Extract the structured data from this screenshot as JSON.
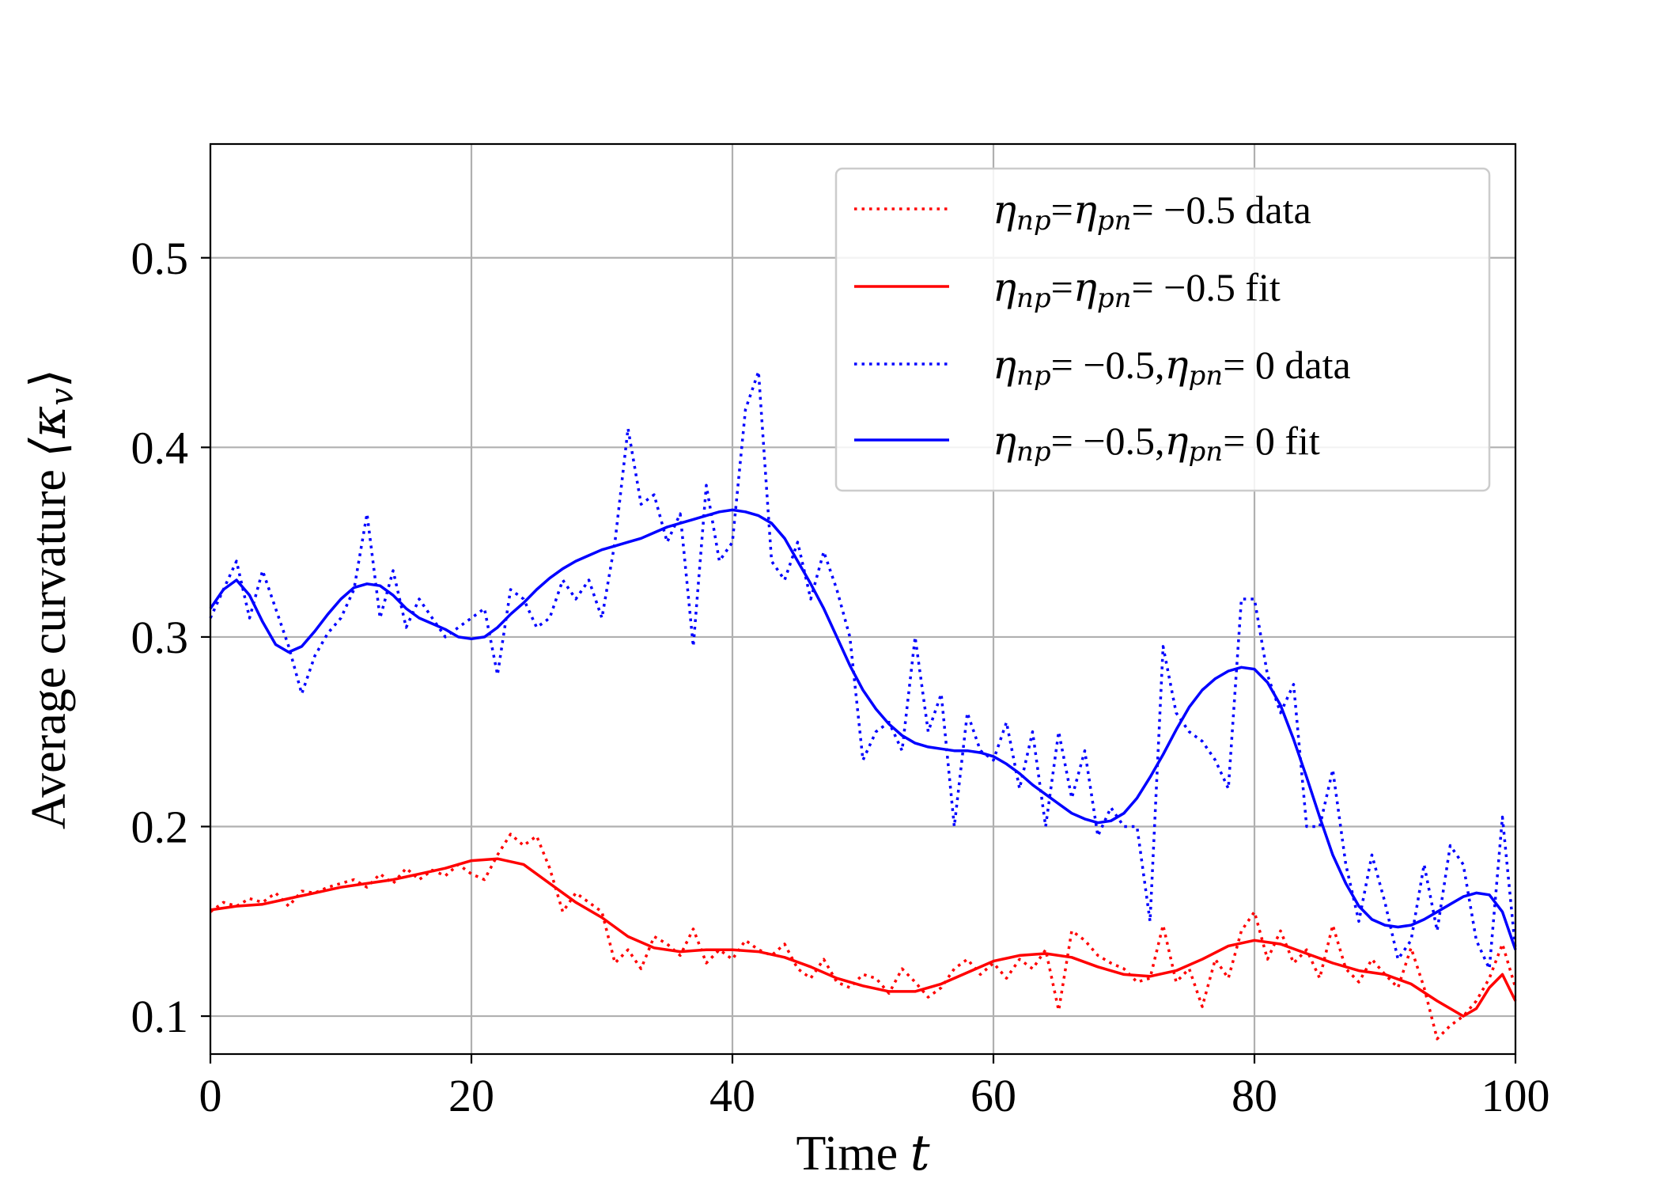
{
  "chart_data": {
    "type": "line",
    "title": "",
    "xlabel": "Time t",
    "xlabel_parts": {
      "text": "Time ",
      "var": "t"
    },
    "ylabel": "Average curvature ⟨κv⟩",
    "ylabel_parts": {
      "text": "Average curvature ",
      "math": "⟨κ",
      "sub": "v",
      "close": "⟩"
    },
    "xlim": [
      0,
      100
    ],
    "ylim": [
      0.08,
      0.56
    ],
    "xticks": [
      0,
      20,
      40,
      60,
      80,
      100
    ],
    "xtick_labels": [
      "0",
      "20",
      "40",
      "60",
      "80",
      "100"
    ],
    "yticks": [
      0.1,
      0.2,
      0.3,
      0.4,
      0.5
    ],
    "ytick_labels": [
      "0.1",
      "0.2",
      "0.3",
      "0.4",
      "0.5"
    ],
    "grid": true,
    "legend_position": "top-right",
    "legend": [
      {
        "label": "ηnp = ηpn = −0.5 data",
        "math": "η",
        "sub1": "np",
        "mid": "=",
        "math2": "η",
        "sub2": "pn",
        "rest": "= −0.5",
        "suffix": " data"
      },
      {
        "label": "ηnp = ηpn = −0.5 fit",
        "math": "η",
        "sub1": "np",
        "mid": "=",
        "math2": "η",
        "sub2": "pn",
        "rest": "= −0.5",
        "suffix": " fit"
      },
      {
        "label": "ηnp = −0.5, ηpn = 0 data",
        "math": "η",
        "sub1": "np",
        "mid": "= −0.5,",
        "math2": "η",
        "sub2": "pn",
        "rest": "= 0",
        "suffix": " data"
      },
      {
        "label": "ηnp = −0.5, ηpn = 0 fit",
        "math": "η",
        "sub1": "np",
        "mid": "= −0.5,",
        "math2": "η",
        "sub2": "pn",
        "rest": "= 0",
        "suffix": " fit"
      }
    ],
    "series": [
      {
        "name": "ηnp = ηpn = −0.5 data",
        "style": "dotted",
        "color": "#ff0000",
        "x": [
          0,
          1,
          2,
          3,
          4,
          5,
          6,
          7,
          8,
          9,
          10,
          11,
          12,
          13,
          14,
          15,
          16,
          17,
          18,
          19,
          20,
          21,
          22,
          23,
          24,
          25,
          26,
          27,
          28,
          29,
          30,
          31,
          32,
          33,
          34,
          35,
          36,
          37,
          38,
          39,
          40,
          41,
          42,
          43,
          44,
          45,
          46,
          47,
          48,
          49,
          50,
          51,
          52,
          53,
          54,
          55,
          56,
          57,
          58,
          59,
          60,
          61,
          62,
          63,
          64,
          65,
          66,
          67,
          68,
          69,
          70,
          71,
          72,
          73,
          74,
          75,
          76,
          77,
          78,
          79,
          80,
          81,
          82,
          83,
          84,
          85,
          86,
          87,
          88,
          89,
          90,
          91,
          92,
          93,
          94,
          95,
          96,
          97,
          98,
          99,
          100
        ],
        "y": [
          0.155,
          0.16,
          0.158,
          0.162,
          0.16,
          0.165,
          0.158,
          0.166,
          0.165,
          0.168,
          0.17,
          0.172,
          0.168,
          0.175,
          0.17,
          0.178,
          0.172,
          0.177,
          0.174,
          0.18,
          0.175,
          0.172,
          0.185,
          0.196,
          0.19,
          0.195,
          0.178,
          0.155,
          0.165,
          0.16,
          0.155,
          0.128,
          0.135,
          0.125,
          0.142,
          0.138,
          0.132,
          0.146,
          0.128,
          0.135,
          0.13,
          0.14,
          0.135,
          0.132,
          0.138,
          0.125,
          0.12,
          0.13,
          0.118,
          0.115,
          0.122,
          0.12,
          0.112,
          0.125,
          0.118,
          0.11,
          0.115,
          0.125,
          0.13,
          0.122,
          0.128,
          0.12,
          0.13,
          0.125,
          0.135,
          0.103,
          0.145,
          0.14,
          0.132,
          0.128,
          0.125,
          0.118,
          0.12,
          0.148,
          0.118,
          0.125,
          0.105,
          0.13,
          0.12,
          0.145,
          0.155,
          0.13,
          0.145,
          0.128,
          0.135,
          0.12,
          0.148,
          0.125,
          0.118,
          0.13,
          0.122,
          0.115,
          0.136,
          0.115,
          0.088,
          0.095,
          0.1,
          0.108,
          0.12,
          0.138,
          0.115
        ]
      },
      {
        "name": "ηnp = ηpn = −0.5 fit",
        "style": "solid",
        "color": "#ff0000",
        "x": [
          0,
          2,
          4,
          6,
          8,
          10,
          12,
          14,
          16,
          18,
          20,
          22,
          24,
          26,
          28,
          30,
          32,
          34,
          36,
          38,
          40,
          42,
          44,
          46,
          48,
          50,
          52,
          54,
          56,
          58,
          60,
          62,
          64,
          66,
          68,
          70,
          72,
          74,
          76,
          78,
          80,
          82,
          84,
          86,
          88,
          90,
          92,
          94,
          96,
          97,
          98,
          99,
          100
        ],
        "y": [
          0.156,
          0.158,
          0.159,
          0.162,
          0.165,
          0.168,
          0.17,
          0.172,
          0.175,
          0.178,
          0.182,
          0.183,
          0.18,
          0.17,
          0.16,
          0.152,
          0.142,
          0.136,
          0.134,
          0.135,
          0.135,
          0.134,
          0.131,
          0.126,
          0.12,
          0.116,
          0.113,
          0.113,
          0.117,
          0.123,
          0.129,
          0.132,
          0.133,
          0.131,
          0.126,
          0.122,
          0.121,
          0.124,
          0.13,
          0.137,
          0.14,
          0.138,
          0.133,
          0.128,
          0.124,
          0.122,
          0.117,
          0.108,
          0.1,
          0.104,
          0.115,
          0.122,
          0.108
        ]
      },
      {
        "name": "ηnp = −0.5, ηpn = 0 data",
        "style": "dotted",
        "color": "#0000ff",
        "x": [
          0,
          1,
          2,
          3,
          4,
          5,
          6,
          7,
          8,
          9,
          10,
          11,
          12,
          13,
          14,
          15,
          16,
          17,
          18,
          19,
          20,
          21,
          22,
          23,
          24,
          25,
          26,
          27,
          28,
          29,
          30,
          31,
          32,
          33,
          34,
          35,
          36,
          37,
          38,
          39,
          40,
          41,
          42,
          43,
          44,
          45,
          46,
          47,
          48,
          49,
          50,
          51,
          52,
          53,
          54,
          55,
          56,
          57,
          58,
          59,
          60,
          61,
          62,
          63,
          64,
          65,
          66,
          67,
          68,
          69,
          70,
          71,
          72,
          73,
          74,
          75,
          76,
          77,
          78,
          79,
          80,
          81,
          82,
          83,
          84,
          85,
          86,
          87,
          88,
          89,
          90,
          91,
          92,
          93,
          94,
          95,
          96,
          97,
          98,
          99,
          100
        ],
        "y": [
          0.31,
          0.325,
          0.34,
          0.31,
          0.335,
          0.315,
          0.295,
          0.27,
          0.29,
          0.302,
          0.31,
          0.325,
          0.365,
          0.31,
          0.335,
          0.305,
          0.32,
          0.31,
          0.3,
          0.305,
          0.31,
          0.315,
          0.28,
          0.325,
          0.32,
          0.305,
          0.31,
          0.33,
          0.32,
          0.33,
          0.31,
          0.35,
          0.41,
          0.37,
          0.375,
          0.35,
          0.365,
          0.295,
          0.38,
          0.34,
          0.35,
          0.42,
          0.44,
          0.34,
          0.33,
          0.35,
          0.32,
          0.345,
          0.325,
          0.3,
          0.235,
          0.25,
          0.255,
          0.24,
          0.3,
          0.25,
          0.27,
          0.2,
          0.26,
          0.24,
          0.235,
          0.255,
          0.22,
          0.25,
          0.2,
          0.25,
          0.215,
          0.24,
          0.195,
          0.21,
          0.2,
          0.2,
          0.15,
          0.295,
          0.26,
          0.25,
          0.245,
          0.235,
          0.22,
          0.32,
          0.32,
          0.28,
          0.26,
          0.275,
          0.2,
          0.2,
          0.23,
          0.18,
          0.15,
          0.185,
          0.16,
          0.13,
          0.14,
          0.18,
          0.145,
          0.19,
          0.18,
          0.14,
          0.125,
          0.205,
          0.135
        ]
      },
      {
        "name": "ηnp = −0.5, ηpn = 0 fit",
        "style": "solid",
        "color": "#0000ff",
        "x": [
          0,
          1,
          2,
          3,
          4,
          5,
          6,
          7,
          8,
          9,
          10,
          11,
          12,
          13,
          14,
          15,
          16,
          17,
          18,
          19,
          20,
          21,
          22,
          23,
          24,
          25,
          26,
          27,
          28,
          29,
          30,
          31,
          32,
          33,
          34,
          35,
          36,
          37,
          38,
          39,
          40,
          41,
          42,
          43,
          44,
          45,
          46,
          47,
          48,
          49,
          50,
          51,
          52,
          53,
          54,
          55,
          56,
          57,
          58,
          59,
          60,
          61,
          62,
          63,
          64,
          65,
          66,
          67,
          68,
          69,
          70,
          71,
          72,
          73,
          74,
          75,
          76,
          77,
          78,
          79,
          80,
          81,
          82,
          83,
          84,
          85,
          86,
          87,
          88,
          89,
          90,
          91,
          92,
          93,
          94,
          95,
          96,
          97,
          98,
          99,
          100
        ],
        "y": [
          0.315,
          0.325,
          0.33,
          0.322,
          0.308,
          0.296,
          0.292,
          0.295,
          0.303,
          0.312,
          0.32,
          0.326,
          0.328,
          0.327,
          0.322,
          0.315,
          0.31,
          0.307,
          0.304,
          0.3,
          0.299,
          0.3,
          0.305,
          0.312,
          0.318,
          0.325,
          0.331,
          0.336,
          0.34,
          0.343,
          0.346,
          0.348,
          0.35,
          0.352,
          0.355,
          0.358,
          0.36,
          0.362,
          0.364,
          0.366,
          0.367,
          0.366,
          0.364,
          0.36,
          0.352,
          0.34,
          0.328,
          0.315,
          0.3,
          0.285,
          0.272,
          0.262,
          0.254,
          0.248,
          0.244,
          0.242,
          0.241,
          0.24,
          0.24,
          0.239,
          0.237,
          0.233,
          0.228,
          0.222,
          0.217,
          0.212,
          0.207,
          0.204,
          0.202,
          0.203,
          0.207,
          0.215,
          0.226,
          0.238,
          0.251,
          0.263,
          0.272,
          0.278,
          0.282,
          0.284,
          0.283,
          0.276,
          0.264,
          0.246,
          0.226,
          0.205,
          0.185,
          0.17,
          0.158,
          0.151,
          0.148,
          0.147,
          0.148,
          0.151,
          0.155,
          0.159,
          0.163,
          0.165,
          0.164,
          0.155,
          0.135
        ]
      }
    ]
  }
}
